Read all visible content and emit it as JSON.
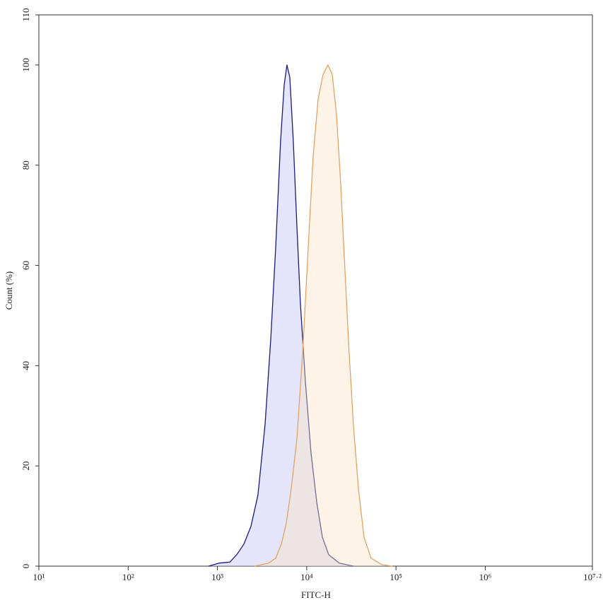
{
  "chart_data": {
    "type": "area",
    "x_label": "FITC-H",
    "y_label": "Count  (%)",
    "xscale": "log",
    "xlim": [
      10,
      15848931.92
    ],
    "xticks": [
      {
        "value": 10,
        "label": "10¹"
      },
      {
        "value": 100,
        "label": "10²"
      },
      {
        "value": 1000,
        "label": "10³"
      },
      {
        "value": 10000,
        "label": "10⁴"
      },
      {
        "value": 100000,
        "label": "10⁵"
      },
      {
        "value": 1000000,
        "label": "10⁶"
      },
      {
        "value": 15848931.92,
        "label": "10⁷·²"
      }
    ],
    "ylim": [
      0,
      110
    ],
    "yticks": [
      0,
      20,
      40,
      60,
      80,
      100,
      110
    ],
    "grid": false,
    "series": [
      {
        "color": "#1c1c7a",
        "fill": "rgba(195,195,245,0.45)",
        "x": [
          794,
          1045,
          1374,
          1649,
          1978,
          2371,
          2844,
          3420,
          3955,
          4490,
          5100,
          5590,
          6010,
          6470,
          7080,
          7760,
          8510,
          9660,
          11170,
          12930,
          14960,
          17620,
          23170,
          33350
        ],
        "values": [
          0,
          0.6,
          0.8,
          2.3,
          4.4,
          7.9,
          14.2,
          28.3,
          45.3,
          63.6,
          84.8,
          96,
          100,
          97.5,
          84.8,
          67.8,
          52.3,
          36.8,
          22.7,
          12.8,
          5.8,
          2.3,
          0.6,
          0
        ]
      },
      {
        "color": "#e0a468",
        "fill": "rgba(250,228,195,0.4)",
        "x": [
          2600,
          3740,
          4490,
          5200,
          5900,
          6710,
          7760,
          8980,
          10400,
          11810,
          13420,
          15250,
          17300,
          19320,
          21530,
          24040,
          26800,
          29920,
          33350,
          37930,
          43850,
          52600,
          69200,
          91000
        ],
        "values": [
          0,
          0.6,
          1.6,
          4.4,
          8.5,
          15.5,
          25.4,
          42.3,
          63.6,
          81.9,
          93.2,
          98.1,
          100,
          98.1,
          90.3,
          76.2,
          59.2,
          42.3,
          28.2,
          15.5,
          5.8,
          1.6,
          0.3,
          0
        ]
      }
    ]
  }
}
